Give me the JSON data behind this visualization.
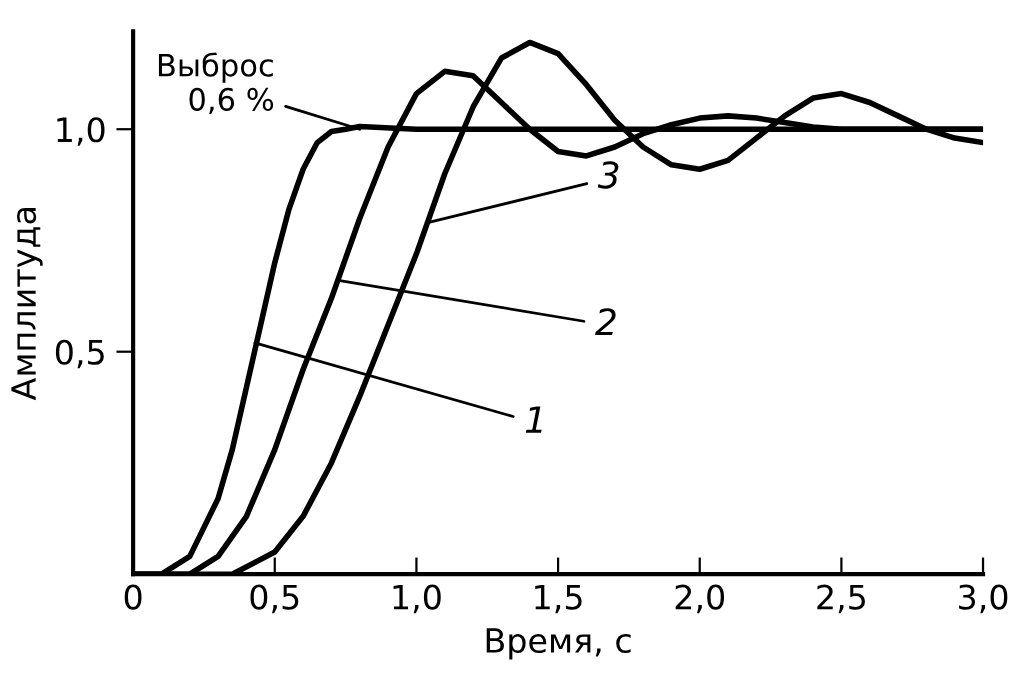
{
  "chart_data": {
    "type": "line",
    "xlabel": "Время, с",
    "ylabel": "Амплитуда",
    "x": [
      0,
      0.1,
      0.2,
      0.3,
      0.35,
      0.4,
      0.45,
      0.5,
      0.55,
      0.6,
      0.65,
      0.7,
      0.75,
      0.8,
      1.0,
      1.5,
      2.0,
      2.5,
      3.0
    ],
    "series": [
      {
        "color": "#000000",
        "values": [
          0,
          0,
          0.04,
          0.17,
          0.28,
          0.42,
          0.56,
          0.7,
          0.82,
          0.91,
          0.97,
          0.995,
          1.0,
          1.006,
          1.0,
          1.0,
          1.0,
          1.0,
          1.0
        ]
      },
      {
        "color": "#000000",
        "x": [
          0,
          0.2,
          0.3,
          0.4,
          0.5,
          0.6,
          0.7,
          0.8,
          0.9,
          1.0,
          1.1,
          1.2,
          1.3,
          1.4,
          1.5,
          1.6,
          1.7,
          1.8,
          1.9,
          2.0,
          2.1,
          2.2,
          2.3,
          2.4,
          2.5,
          2.6,
          3.0
        ],
        "values": [
          0,
          0,
          0.04,
          0.13,
          0.28,
          0.46,
          0.62,
          0.8,
          0.96,
          1.08,
          1.13,
          1.12,
          1.06,
          1.0,
          0.95,
          0.94,
          0.96,
          0.99,
          1.01,
          1.025,
          1.03,
          1.025,
          1.015,
          1.005,
          1.0,
          1.0,
          1.0
        ]
      },
      {
        "color": "#000000",
        "x": [
          0,
          0.35,
          0.5,
          0.6,
          0.7,
          0.8,
          0.9,
          1.0,
          1.1,
          1.2,
          1.3,
          1.4,
          1.5,
          1.6,
          1.7,
          1.8,
          1.9,
          2.0,
          2.1,
          2.2,
          2.3,
          2.4,
          2.5,
          2.6,
          2.7,
          2.8,
          2.9,
          3.0
        ],
        "values": [
          0,
          0,
          0.05,
          0.13,
          0.25,
          0.4,
          0.56,
          0.72,
          0.9,
          1.05,
          1.16,
          1.195,
          1.17,
          1.1,
          1.02,
          0.96,
          0.92,
          0.91,
          0.93,
          0.98,
          1.03,
          1.07,
          1.08,
          1.06,
          1.03,
          1.0,
          0.98,
          0.97
        ]
      }
    ],
    "xlim": [
      0,
      3.0
    ],
    "ylim": [
      0,
      1.22
    ],
    "xticks": [
      {
        "value": 0,
        "label": "0"
      },
      {
        "value": 0.5,
        "label": "0,5"
      },
      {
        "value": 1.0,
        "label": "1,0"
      },
      {
        "value": 1.5,
        "label": "1,5"
      },
      {
        "value": 2.0,
        "label": "2,0"
      },
      {
        "value": 2.5,
        "label": "2,5"
      },
      {
        "value": 3.0,
        "label": "3,0"
      }
    ],
    "yticks": [
      {
        "value": 0.5,
        "label": "0,5"
      },
      {
        "value": 1.0,
        "label": "1,0"
      }
    ],
    "grid": false,
    "legend": false,
    "line_style": "solid",
    "marker": "none",
    "annotations": [
      {
        "text": "Выброс\n0,6 %",
        "x": 0.8,
        "y": 1.0
      },
      {
        "text": "1",
        "x": 0.43,
        "y": 0.52
      },
      {
        "text": "2",
        "x": 0.73,
        "y": 0.66
      },
      {
        "text": "3",
        "x": 1.04,
        "y": 0.79
      }
    ]
  }
}
